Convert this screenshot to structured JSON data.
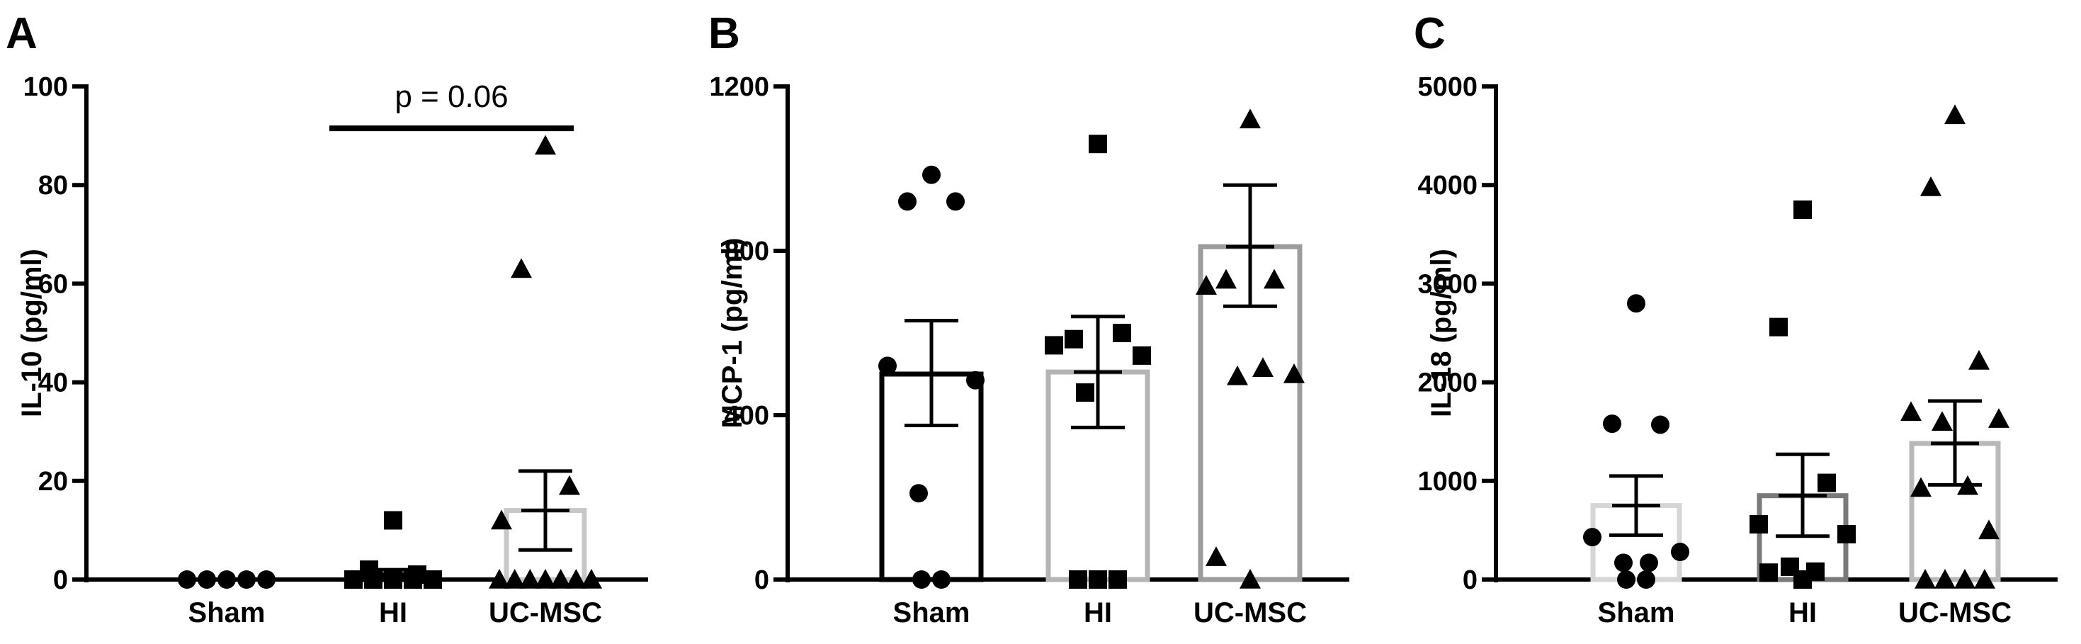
{
  "chart_data": [
    {
      "panel": "A",
      "type": "bar",
      "title": "",
      "xlabel": "",
      "ylabel": "IL-10 (pg/ml)",
      "ylim": [
        0,
        100
      ],
      "yticks": [
        0,
        20,
        40,
        60,
        80,
        100
      ],
      "categories": [
        "Sham",
        "HI",
        "UC-MSC"
      ],
      "series": [
        {
          "values": [
            0,
            1,
            14
          ],
          "sem": [
            0,
            0.8,
            7.8
          ],
          "bar_color": "#bdbdbd",
          "marker": "circle",
          "points": [
            [
              0,
              0,
              0,
              0,
              0
            ],
            [
              12,
              2,
              1,
              0,
              0,
              0,
              0,
              0
            ],
            [
              88,
              63,
              19,
              12,
              0,
              0,
              0,
              0,
              0,
              0,
              0
            ]
          ]
        }
      ],
      "bar_colors": [
        "#000000",
        "#000000",
        "#c8c8c8"
      ],
      "markers": [
        "circle",
        "square",
        "triangle"
      ],
      "points": [
        [
          0,
          0,
          0,
          0,
          0
        ],
        [
          12,
          2,
          1,
          0,
          0,
          0,
          0,
          0
        ],
        [
          88,
          63,
          19,
          12,
          0,
          0,
          0,
          0,
          0,
          0,
          0
        ]
      ],
      "sem_upper": [
        0,
        2,
        22
      ],
      "sem_lower": [
        0,
        0,
        6
      ],
      "annotation": {
        "text": "p = 0.06",
        "from_category": 1,
        "to_category": 2,
        "y": 91.5
      }
    },
    {
      "panel": "B",
      "type": "bar",
      "title": "",
      "xlabel": "",
      "ylabel": "MCP-1 (pg/ml)",
      "ylim": [
        0,
        1200
      ],
      "yticks": [
        0,
        400,
        800,
        1200
      ],
      "categories": [
        "Sham",
        "HI",
        "UC-MSC"
      ],
      "values": [
        500,
        505,
        810
      ],
      "bar_colors": [
        "#000000",
        "#b4b4b4",
        "#9c9c9c"
      ],
      "markers": [
        "circle",
        "square",
        "triangle"
      ],
      "points": [
        [
          985,
          920,
          920,
          520,
          485,
          210,
          0,
          0
        ],
        [
          1060,
          585,
          600,
          570,
          545,
          455,
          0,
          0,
          0
        ],
        [
          1120,
          730,
          730,
          715,
          500,
          495,
          515,
          55,
          0
        ]
      ],
      "sem_upper": [
        630,
        640,
        960
      ],
      "sem_lower": [
        375,
        370,
        665
      ]
    },
    {
      "panel": "C",
      "type": "bar",
      "title": "",
      "xlabel": "",
      "ylabel": "IL-18 (pg/ml)",
      "ylim": [
        0,
        5000
      ],
      "yticks": [
        0,
        1000,
        2000,
        3000,
        4000,
        5000
      ],
      "categories": [
        "Sham",
        "HI",
        "UC-MSC"
      ],
      "values": [
        750,
        850,
        1380
      ],
      "bar_colors": [
        "#d6d6d6",
        "#7a7a7a",
        "#b8b8b8"
      ],
      "markers": [
        "circle",
        "square",
        "triangle"
      ],
      "points": [
        [
          2800,
          1580,
          1570,
          430,
          280,
          170,
          170,
          0,
          0
        ],
        [
          3750,
          2560,
          980,
          560,
          460,
          130,
          80,
          70,
          0
        ],
        [
          4710,
          3980,
          2220,
          1700,
          1630,
          1600,
          950,
          930,
          500,
          0,
          0,
          0,
          0
        ]
      ],
      "sem_upper": [
        1050,
        1270,
        1810
      ],
      "sem_lower": [
        450,
        440,
        960
      ]
    }
  ]
}
